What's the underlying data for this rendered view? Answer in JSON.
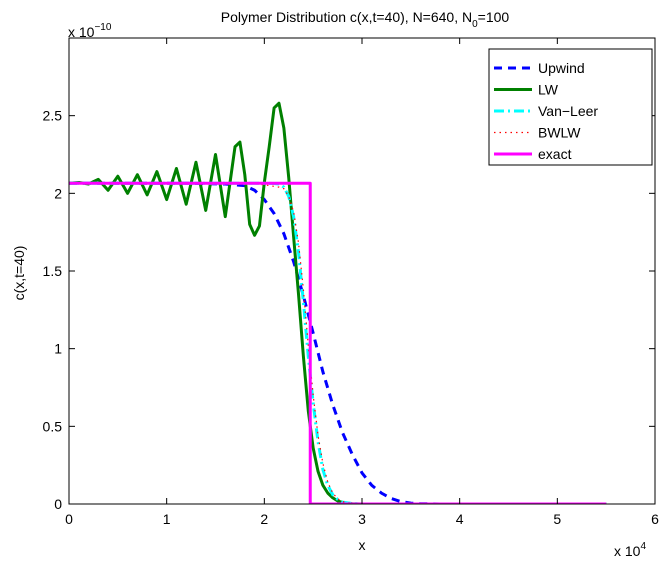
{
  "chart_data": {
    "type": "line",
    "title": "Polymer Distribution c(x,t=40), N=640, N",
    "title_subscript": "0",
    "title_suffix": "=100",
    "xlabel": "x",
    "ylabel": "c(x,t=40)",
    "x_multiplier": "x 10",
    "x_multiplier_exp": "4",
    "y_multiplier": "x 10",
    "y_multiplier_exp": "−10",
    "xlim": [
      0,
      6
    ],
    "ylim": [
      0,
      3
    ],
    "xticks": [
      0,
      1,
      2,
      3,
      4,
      5,
      6
    ],
    "xtick_labels": [
      "0",
      "1",
      "2",
      "3",
      "4",
      "5",
      "6"
    ],
    "yticks": [
      0,
      0.5,
      1,
      1.5,
      2,
      2.5
    ],
    "ytick_labels": [
      "0",
      "0.5",
      "1",
      "1.5",
      "2",
      "2.5"
    ],
    "grid": false,
    "legend_position": "top-right",
    "series": [
      {
        "name": "Upwind",
        "color": "#0000ff",
        "dash": "dashed",
        "x": [
          0,
          1.2,
          1.6,
          1.8,
          1.9,
          2.0,
          2.1,
          2.2,
          2.3,
          2.4,
          2.5,
          2.6,
          2.7,
          2.8,
          2.9,
          3.0,
          3.1,
          3.2,
          3.3,
          3.4,
          3.5,
          3.6,
          3.8,
          4.5,
          5.5
        ],
        "y": [
          2.065,
          2.065,
          2.06,
          2.05,
          2.02,
          1.96,
          1.87,
          1.74,
          1.56,
          1.34,
          1.1,
          0.85,
          0.64,
          0.46,
          0.32,
          0.2,
          0.12,
          0.07,
          0.035,
          0.015,
          0.006,
          0.002,
          0.0,
          0.0,
          0.0
        ]
      },
      {
        "name": "LW",
        "color": "#008000",
        "dash": "solid",
        "x": [
          0,
          0.1,
          0.2,
          0.3,
          0.4,
          0.5,
          0.6,
          0.7,
          0.8,
          0.9,
          1.0,
          1.1,
          1.2,
          1.3,
          1.4,
          1.5,
          1.6,
          1.7,
          1.75,
          1.8,
          1.85,
          1.9,
          1.95,
          2.0,
          2.05,
          2.1,
          2.15,
          2.2,
          2.25,
          2.3,
          2.35,
          2.4,
          2.45,
          2.5,
          2.55,
          2.6,
          2.65,
          2.7,
          2.75,
          2.8,
          2.9,
          3.0,
          5.5
        ],
        "y": [
          2.065,
          2.07,
          2.06,
          2.09,
          2.02,
          2.11,
          2.0,
          2.12,
          1.99,
          2.14,
          1.96,
          2.16,
          1.93,
          2.2,
          1.89,
          2.25,
          1.85,
          2.3,
          2.33,
          2.12,
          1.8,
          1.73,
          1.79,
          2.07,
          2.3,
          2.55,
          2.58,
          2.42,
          2.1,
          1.72,
          1.35,
          0.95,
          0.6,
          0.36,
          0.21,
          0.12,
          0.07,
          0.04,
          0.02,
          0.01,
          0.002,
          0.0,
          0.0
        ]
      },
      {
        "name": "Van−Leer",
        "color": "#00ffff",
        "dash": "dashdot",
        "x": [
          0,
          1.8,
          2.0,
          2.1,
          2.15,
          2.2,
          2.25,
          2.3,
          2.35,
          2.4,
          2.45,
          2.5,
          2.55,
          2.6,
          2.65,
          2.7,
          2.75,
          2.8,
          2.9,
          3.0,
          5.5
        ],
        "y": [
          2.065,
          2.065,
          2.065,
          2.063,
          2.06,
          2.04,
          1.98,
          1.85,
          1.62,
          1.3,
          0.95,
          0.65,
          0.4,
          0.22,
          0.12,
          0.06,
          0.03,
          0.012,
          0.003,
          0.0,
          0.0
        ]
      },
      {
        "name": "BWLW",
        "color": "#ff0000",
        "dash": "dotted",
        "x": [
          0,
          1.8,
          1.9,
          2.0,
          2.05,
          2.1,
          2.15,
          2.2,
          2.25,
          2.3,
          2.35,
          2.4,
          2.45,
          2.5,
          2.55,
          2.6,
          2.65,
          2.7,
          2.75,
          2.8,
          2.9,
          3.0,
          5.5
        ],
        "y": [
          2.065,
          2.065,
          2.062,
          2.055,
          2.05,
          2.045,
          2.04,
          2.03,
          1.98,
          1.88,
          1.68,
          1.38,
          1.02,
          0.7,
          0.44,
          0.26,
          0.14,
          0.07,
          0.035,
          0.015,
          0.004,
          0.0,
          0.0
        ]
      },
      {
        "name": "exact",
        "color": "#ff00ff",
        "dash": "solid",
        "x": [
          0,
          2.47,
          2.47,
          5.5
        ],
        "y": [
          2.065,
          2.065,
          0.0,
          0.0
        ]
      }
    ]
  }
}
